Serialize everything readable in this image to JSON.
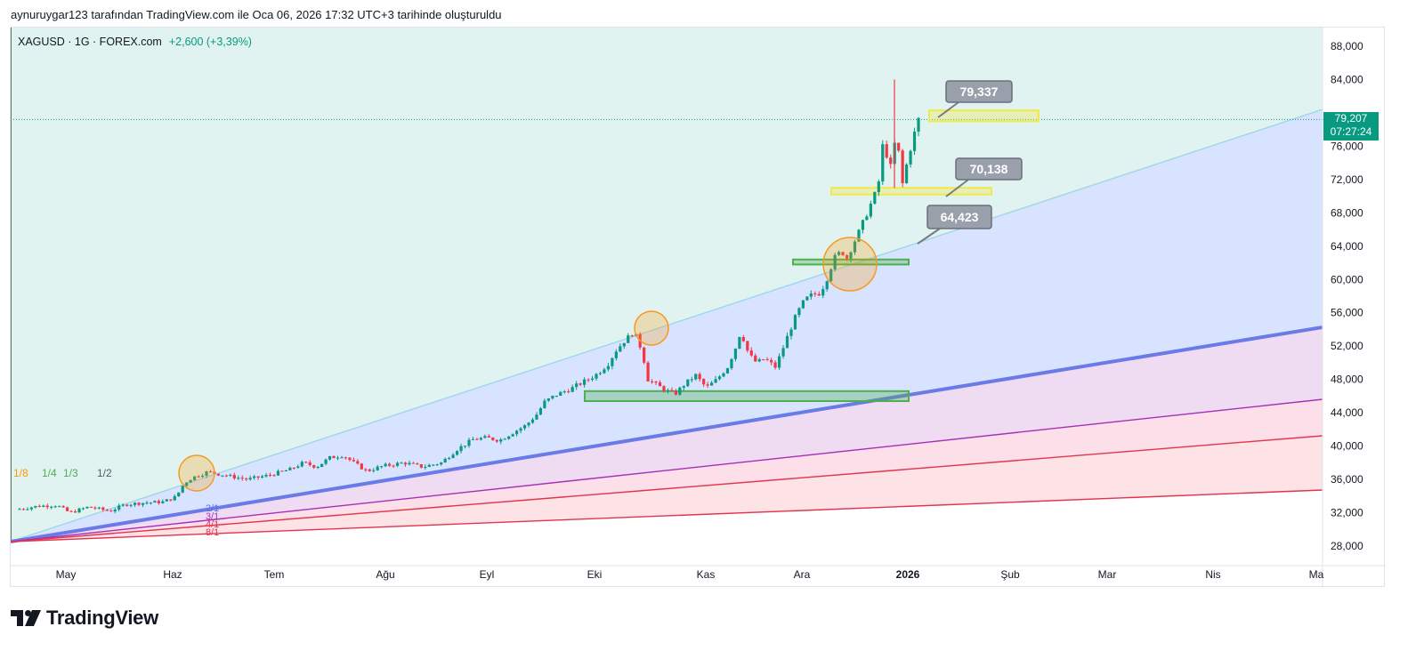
{
  "header": {
    "snapshot_note": "aynuruygar123 tarafından TradingView.com ile Oca 06, 2026 17:32 UTC+3 tarihinde oluşturuldu"
  },
  "legend": {
    "symbol": "XAGUSD · 1G · FOREX.com",
    "change": "+2,600 (+3,39%)",
    "change_color": "#089981"
  },
  "price_tag": {
    "price": "79,207",
    "countdown": "07:27:24",
    "color": "#089981"
  },
  "brand": {
    "name": "TradingView",
    "icon": "tradingview-logo-icon"
  },
  "chart_data": {
    "type": "candlestick",
    "symbol": "XAGUSD",
    "interval": "1G",
    "x_ticks": [
      {
        "label": "May",
        "bold": false
      },
      {
        "label": "Haz",
        "bold": false
      },
      {
        "label": "Tem",
        "bold": false
      },
      {
        "label": "Ağu",
        "bold": false
      },
      {
        "label": "Eyl",
        "bold": false
      },
      {
        "label": "Eki",
        "bold": false
      },
      {
        "label": "Kas",
        "bold": false
      },
      {
        "label": "Ara",
        "bold": false
      },
      {
        "label": "2026",
        "bold": true
      },
      {
        "label": "Şub",
        "bold": false
      },
      {
        "label": "Mar",
        "bold": false
      },
      {
        "label": "Nis",
        "bold": false
      },
      {
        "label": "Ma",
        "bold": false
      }
    ],
    "y_ticks": [
      "88,000",
      "84,000",
      "80,000",
      "76,000",
      "72,000",
      "68,000",
      "64,000",
      "60,000",
      "56,000",
      "52,000",
      "48,000",
      "44,000",
      "40,000",
      "36,000",
      "32,000",
      "28,000"
    ],
    "ylim": [
      26000,
      90000
    ],
    "last_price": 79.207,
    "up_color": "#089981",
    "down_color": "#f23645",
    "price_path": [
      [
        0,
        32.4
      ],
      [
        8,
        32.8
      ],
      [
        15,
        32.9
      ],
      [
        20,
        32.0
      ],
      [
        27,
        32.7
      ],
      [
        35,
        32.2
      ],
      [
        41,
        33.0
      ],
      [
        48,
        33.2
      ],
      [
        55,
        33.3
      ],
      [
        60,
        33.9
      ],
      [
        63,
        35.5
      ],
      [
        66,
        36.2
      ],
      [
        72,
        36.9
      ],
      [
        80,
        36.4
      ],
      [
        87,
        36.0
      ],
      [
        95,
        36.5
      ],
      [
        103,
        37.2
      ],
      [
        108,
        38.0
      ],
      [
        113,
        37.5
      ],
      [
        118,
        38.6
      ],
      [
        123,
        38.9
      ],
      [
        128,
        37.8
      ],
      [
        132,
        37.0
      ],
      [
        138,
        37.6
      ],
      [
        146,
        38.0
      ],
      [
        153,
        37.5
      ],
      [
        160,
        38.0
      ],
      [
        166,
        39.6
      ],
      [
        172,
        40.8
      ],
      [
        177,
        41.0
      ],
      [
        182,
        40.7
      ],
      [
        188,
        41.8
      ],
      [
        192,
        42.5
      ],
      [
        196,
        43.8
      ],
      [
        199,
        45.3
      ],
      [
        203,
        46.1
      ],
      [
        206,
        46.5
      ],
      [
        209,
        46.9
      ],
      [
        213,
        47.6
      ],
      [
        216,
        48.1
      ],
      [
        219,
        48.7
      ],
      [
        223,
        49.9
      ],
      [
        226,
        51.5
      ],
      [
        229,
        52.6
      ],
      [
        232,
        53.5
      ],
      [
        234,
        53.0
      ],
      [
        236,
        51.0
      ],
      [
        238,
        48.0
      ],
      [
        241,
        47.4
      ],
      [
        244,
        46.8
      ],
      [
        248,
        46.2
      ],
      [
        252,
        47.5
      ],
      [
        256,
        48.5
      ],
      [
        260,
        47.0
      ],
      [
        264,
        48.0
      ],
      [
        268,
        49.5
      ],
      [
        271,
        51.8
      ],
      [
        273,
        53.8
      ],
      [
        276,
        51.0
      ],
      [
        279,
        50.0
      ],
      [
        282,
        50.5
      ],
      [
        286,
        49.5
      ],
      [
        288,
        51.0
      ],
      [
        291,
        53.5
      ],
      [
        294,
        55.8
      ],
      [
        297,
        57.5
      ],
      [
        300,
        58.2
      ],
      [
        303,
        58.4
      ],
      [
        306,
        60.5
      ],
      [
        308,
        62.5
      ],
      [
        311,
        63.4
      ],
      [
        313,
        62.6
      ],
      [
        315,
        64.0
      ],
      [
        318,
        66.0
      ],
      [
        321,
        68.3
      ],
      [
        324,
        70.5
      ],
      [
        326,
        73.0
      ],
      [
        327,
        79.0
      ],
      [
        329,
        71.0
      ],
      [
        330,
        76.0
      ],
      [
        332,
        76.5
      ],
      [
        334,
        71.5
      ],
      [
        336,
        74.5
      ],
      [
        338,
        77.0
      ],
      [
        340,
        79.2
      ]
    ],
    "horizontal_zones": [
      {
        "name": "zone-top",
        "from": 79.0,
        "to": 80.3,
        "color": "#f2e84a"
      },
      {
        "name": "zone-70k",
        "from": 70.2,
        "to": 71.0,
        "color": "#f2e84a"
      },
      {
        "name": "zone-62k",
        "from": 61.8,
        "to": 62.4,
        "color": "#4caf50"
      },
      {
        "name": "zone-46k",
        "from": 45.4,
        "to": 46.6,
        "color": "#4caf50"
      }
    ],
    "callouts": [
      "79,337",
      "70,138",
      "64,423"
    ],
    "gann_fan_labels": {
      "upper": [
        "1/8",
        "1/4",
        "1/3",
        "1/2"
      ],
      "lower": [
        "2/1",
        "3/1",
        "4/1",
        "8/1"
      ]
    },
    "highlight_circles": 3,
    "grid": false
  }
}
